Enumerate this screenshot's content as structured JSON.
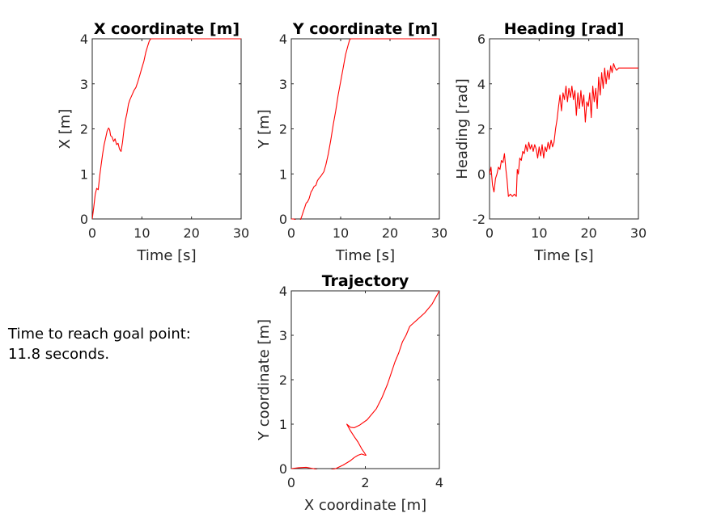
{
  "annotation": {
    "line1": "Time to reach goal point:",
    "line2": "11.8 seconds."
  },
  "colors": {
    "series": "#ff0000",
    "axes": "#262626"
  },
  "chart_data": [
    {
      "type": "line",
      "title": "X coordinate [m]",
      "xlabel": "Time [s]",
      "ylabel": "X [m]",
      "xlim": [
        0,
        30
      ],
      "ylim": [
        0,
        4
      ],
      "xticks": [
        "0",
        "10",
        "20",
        "30"
      ],
      "yticks": [
        "0",
        "1",
        "2",
        "3",
        "4"
      ],
      "grid": false,
      "series": [
        {
          "x": [
            0,
            0.3,
            0.6,
            0.9,
            1.2,
            1.5,
            1.8,
            2.1,
            2.4,
            2.7,
            3.0,
            3.3,
            3.5,
            3.7,
            4.0,
            4.3,
            4.6,
            4.9,
            5.2,
            5.5,
            5.8,
            6.1,
            6.4,
            6.7,
            7.0,
            7.3,
            7.6,
            8.0,
            8.4,
            8.8,
            9.2,
            9.6,
            10.0,
            10.4,
            10.8,
            11.2,
            11.5,
            11.8,
            12.0,
            15,
            20,
            25,
            30
          ],
          "y": [
            0,
            0.25,
            0.55,
            0.68,
            0.65,
            0.95,
            1.2,
            1.45,
            1.65,
            1.8,
            1.95,
            2.02,
            1.98,
            1.85,
            1.82,
            1.72,
            1.78,
            1.65,
            1.68,
            1.55,
            1.5,
            1.7,
            2.0,
            2.2,
            2.35,
            2.55,
            2.65,
            2.75,
            2.85,
            2.92,
            3.05,
            3.2,
            3.35,
            3.5,
            3.7,
            3.85,
            3.95,
            4.0,
            4.0,
            4.0,
            4.0,
            4.0,
            4.0
          ]
        }
      ]
    },
    {
      "type": "line",
      "title": "Y coordinate [m]",
      "xlabel": "Time [s]",
      "ylabel": "Y [m]",
      "xlim": [
        0,
        30
      ],
      "ylim": [
        0,
        4
      ],
      "xticks": [
        "0",
        "10",
        "20",
        "30"
      ],
      "yticks": [
        "0",
        "1",
        "2",
        "3",
        "4"
      ],
      "grid": false,
      "series": [
        {
          "x": [
            0,
            0.5,
            1.0,
            1.5,
            1.8,
            2.1,
            2.4,
            2.7,
            3.0,
            3.3,
            3.6,
            4.0,
            4.3,
            4.6,
            5.0,
            5.3,
            5.6,
            6.0,
            6.3,
            6.6,
            7.0,
            7.5,
            8.0,
            8.5,
            9.0,
            9.5,
            10.0,
            10.5,
            11.0,
            11.5,
            11.8,
            12.0,
            15,
            20,
            25,
            30
          ],
          "y": [
            0,
            0.0,
            -0.03,
            -0.05,
            -0.03,
            0.05,
            0.15,
            0.25,
            0.35,
            0.38,
            0.45,
            0.6,
            0.65,
            0.72,
            0.75,
            0.85,
            0.9,
            0.95,
            1.0,
            1.05,
            1.2,
            1.45,
            1.75,
            2.1,
            2.4,
            2.75,
            3.05,
            3.35,
            3.65,
            3.85,
            3.97,
            4.0,
            4.0,
            4.0,
            4.0,
            4.0
          ]
        }
      ]
    },
    {
      "type": "line",
      "title": "Heading [rad]",
      "xlabel": "Time [s]",
      "ylabel": "Heading [rad]",
      "xlim": [
        0,
        30
      ],
      "ylim": [
        -2,
        6
      ],
      "xticks": [
        "0",
        "10",
        "20",
        "30"
      ],
      "yticks": [
        "-2",
        "0",
        "2",
        "4",
        "6"
      ],
      "grid": false,
      "series": [
        {
          "x": [
            0,
            0.3,
            0.6,
            0.9,
            1.2,
            1.5,
            1.8,
            2.1,
            2.4,
            2.7,
            3.0,
            3.3,
            3.5,
            3.8,
            4.2,
            4.6,
            5.0,
            5.4,
            5.6,
            5.8,
            6.1,
            6.4,
            6.7,
            7.0,
            7.3,
            7.6,
            7.9,
            8.2,
            8.5,
            8.8,
            9.1,
            9.4,
            9.7,
            10.0,
            10.3,
            10.6,
            10.9,
            11.2,
            11.5,
            11.8,
            12.1,
            12.4,
            12.7,
            13.0,
            13.3,
            13.6,
            13.9,
            14.2,
            14.5,
            14.8,
            15.1,
            15.4,
            15.7,
            16.0,
            16.3,
            16.6,
            16.9,
            17.2,
            17.5,
            17.8,
            18.1,
            18.4,
            18.7,
            19.0,
            19.3,
            19.6,
            19.9,
            20.2,
            20.5,
            20.8,
            21.1,
            21.4,
            21.7,
            22.0,
            22.3,
            22.6,
            22.9,
            23.2,
            23.5,
            23.8,
            24.1,
            24.4,
            24.7,
            25.0,
            25.3,
            25.6,
            26.0,
            26.5,
            27,
            28,
            30
          ],
          "y": [
            0.0,
            0.3,
            -0.5,
            -0.8,
            -0.2,
            0.0,
            0.3,
            0.2,
            0.6,
            0.5,
            0.9,
            0.2,
            -0.2,
            -1.0,
            -0.9,
            -1.0,
            -0.9,
            -1.0,
            0.2,
            0.0,
            0.7,
            0.6,
            1.0,
            0.9,
            1.3,
            1.0,
            1.4,
            1.1,
            1.3,
            1.0,
            1.3,
            1.1,
            0.7,
            1.2,
            0.8,
            1.3,
            0.7,
            1.2,
            1.0,
            1.4,
            1.1,
            1.5,
            1.2,
            1.4,
            2.0,
            2.4,
            3.0,
            3.5,
            2.8,
            3.6,
            3.3,
            3.9,
            3.2,
            3.8,
            3.4,
            3.9,
            3.3,
            3.7,
            2.6,
            3.6,
            2.9,
            3.7,
            3.0,
            3.5,
            2.3,
            3.2,
            3.0,
            3.6,
            2.5,
            3.9,
            3.2,
            3.8,
            2.9,
            4.3,
            3.5,
            4.5,
            3.8,
            4.7,
            4.0,
            4.6,
            4.2,
            4.8,
            4.5,
            4.9,
            4.7,
            4.6,
            4.7,
            4.7,
            4.7,
            4.7,
            4.7
          ]
        }
      ]
    },
    {
      "type": "line",
      "title": "Trajectory",
      "xlabel": "X coordinate [m]",
      "ylabel": "Y coordinate [m]",
      "xlim": [
        0,
        4
      ],
      "ylim": [
        0,
        4
      ],
      "xticks": [
        "0",
        "2",
        "4"
      ],
      "yticks": [
        "0",
        "1",
        "2",
        "3",
        "4"
      ],
      "grid": false,
      "series": [
        {
          "x": [
            0,
            0.2,
            0.4,
            0.6,
            0.8,
            1.0,
            1.2,
            1.4,
            1.6,
            1.7,
            1.8,
            1.9,
            2.0,
            2.02,
            1.9,
            1.8,
            1.7,
            1.6,
            1.5,
            1.6,
            1.7,
            1.85,
            2.05,
            2.3,
            2.45,
            2.6,
            2.7,
            2.8,
            2.9,
            3.0,
            3.1,
            3.2,
            3.4,
            3.6,
            3.8,
            3.9,
            4.0
          ],
          "y": [
            0.0,
            0.02,
            0.03,
            0.0,
            -0.05,
            -0.04,
            0.0,
            0.08,
            0.18,
            0.25,
            0.3,
            0.33,
            0.3,
            0.3,
            0.45,
            0.6,
            0.72,
            0.85,
            1.0,
            0.93,
            0.92,
            0.98,
            1.1,
            1.35,
            1.6,
            1.9,
            2.15,
            2.4,
            2.6,
            2.85,
            3.0,
            3.2,
            3.35,
            3.5,
            3.7,
            3.85,
            4.0
          ]
        }
      ]
    }
  ]
}
